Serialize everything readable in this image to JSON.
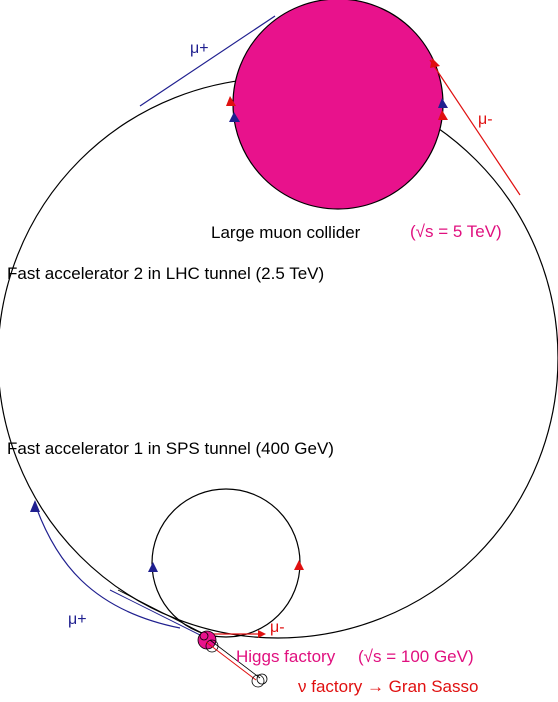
{
  "colors": {
    "ring": "#000000",
    "muon_plus": "#1f1f8f",
    "muon_minus": "#e01010",
    "collider_fill": "#e8128c",
    "label_magenta": "#e0107f",
    "label_blue": "#1f1f8f"
  },
  "labels": {
    "muon_plus_top": "μ+",
    "muon_minus_top": "μ-",
    "large_collider": "Large muon collider",
    "large_collider_energy": "(√s = 5 TeV)",
    "fast_acc_2": "Fast accelerator 2 in LHC tunnel (2.5 TeV)",
    "fast_acc_1": "Fast accelerator 1 in SPS tunnel (400 GeV)",
    "muon_plus_bottom": "μ+",
    "muon_minus_bottom": "μ-",
    "higgs_factory": "Higgs factory",
    "higgs_energy": "(√s = 100 GeV)",
    "nu_factory": "ν factory → Gran Sasso"
  }
}
